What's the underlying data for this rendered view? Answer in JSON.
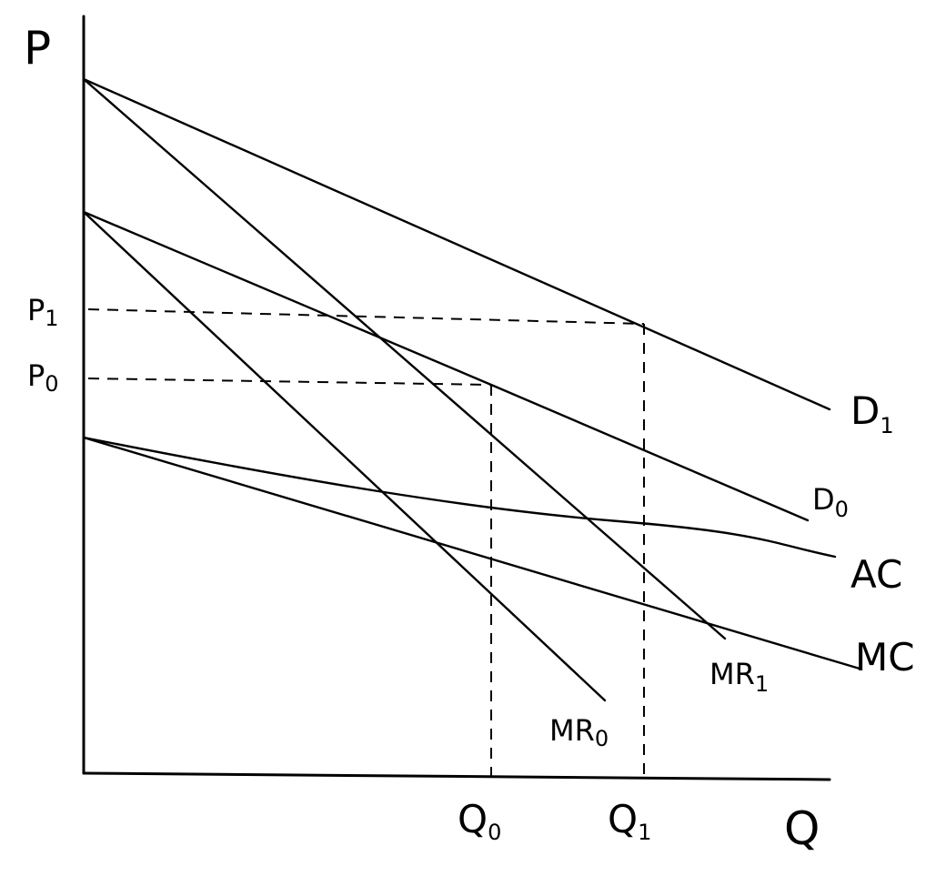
{
  "axes": {
    "y_label": "P",
    "x_label": "Q"
  },
  "price_levels": [
    {
      "label": "P",
      "sub": "1"
    },
    {
      "label": "P",
      "sub": "0"
    }
  ],
  "quantity_levels": [
    {
      "label": "Q",
      "sub": "0"
    },
    {
      "label": "Q",
      "sub": "1"
    }
  ],
  "curves": [
    {
      "label": "D",
      "sub": "1"
    },
    {
      "label": "D",
      "sub": "0"
    },
    {
      "label": "AC",
      "sub": ""
    },
    {
      "label": "MC",
      "sub": ""
    },
    {
      "label": "MR",
      "sub": "1"
    },
    {
      "label": "MR",
      "sub": "0"
    }
  ]
}
